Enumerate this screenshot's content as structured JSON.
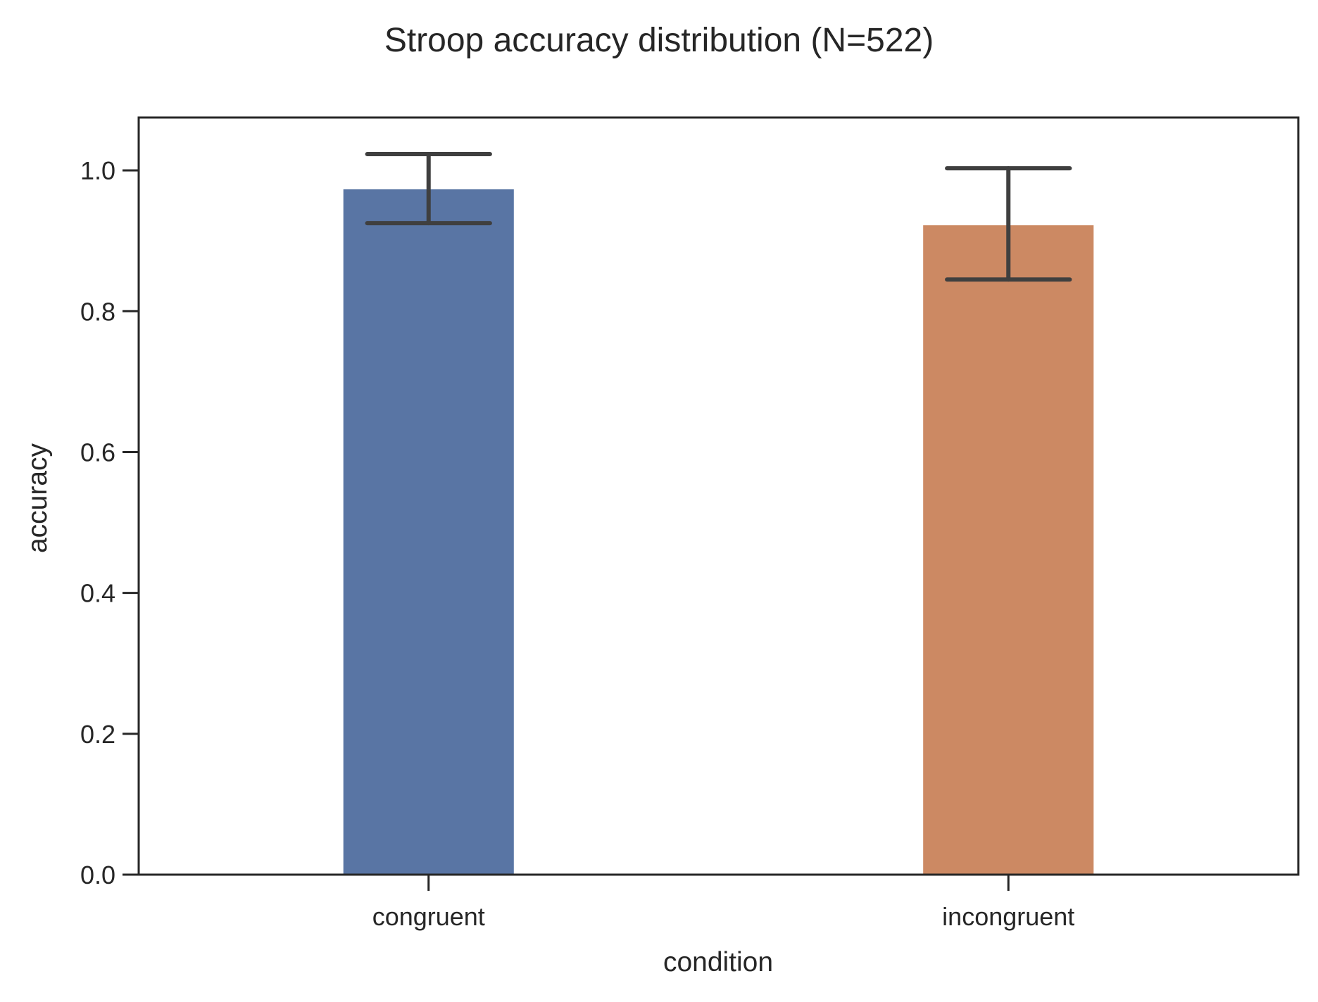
{
  "chart_data": {
    "type": "bar",
    "title": "Stroop accuracy distribution (N=522)",
    "xlabel": "condition",
    "ylabel": "accuracy",
    "categories": [
      "congruent",
      "incongruent"
    ],
    "values": [
      0.973,
      0.922
    ],
    "error_low": [
      0.925,
      0.845
    ],
    "error_high": [
      1.023,
      1.003
    ],
    "ylim": [
      0,
      1.075
    ],
    "yticks": [
      0.0,
      0.2,
      0.4,
      0.6,
      0.8,
      1.0
    ],
    "ytick_labels": [
      "0.0",
      "0.2",
      "0.4",
      "0.6",
      "0.8",
      "1.0"
    ],
    "colors": [
      "#5975a4",
      "#cc8963"
    ],
    "error_color": "#3f3f3f",
    "grid": false,
    "legend": "none"
  }
}
